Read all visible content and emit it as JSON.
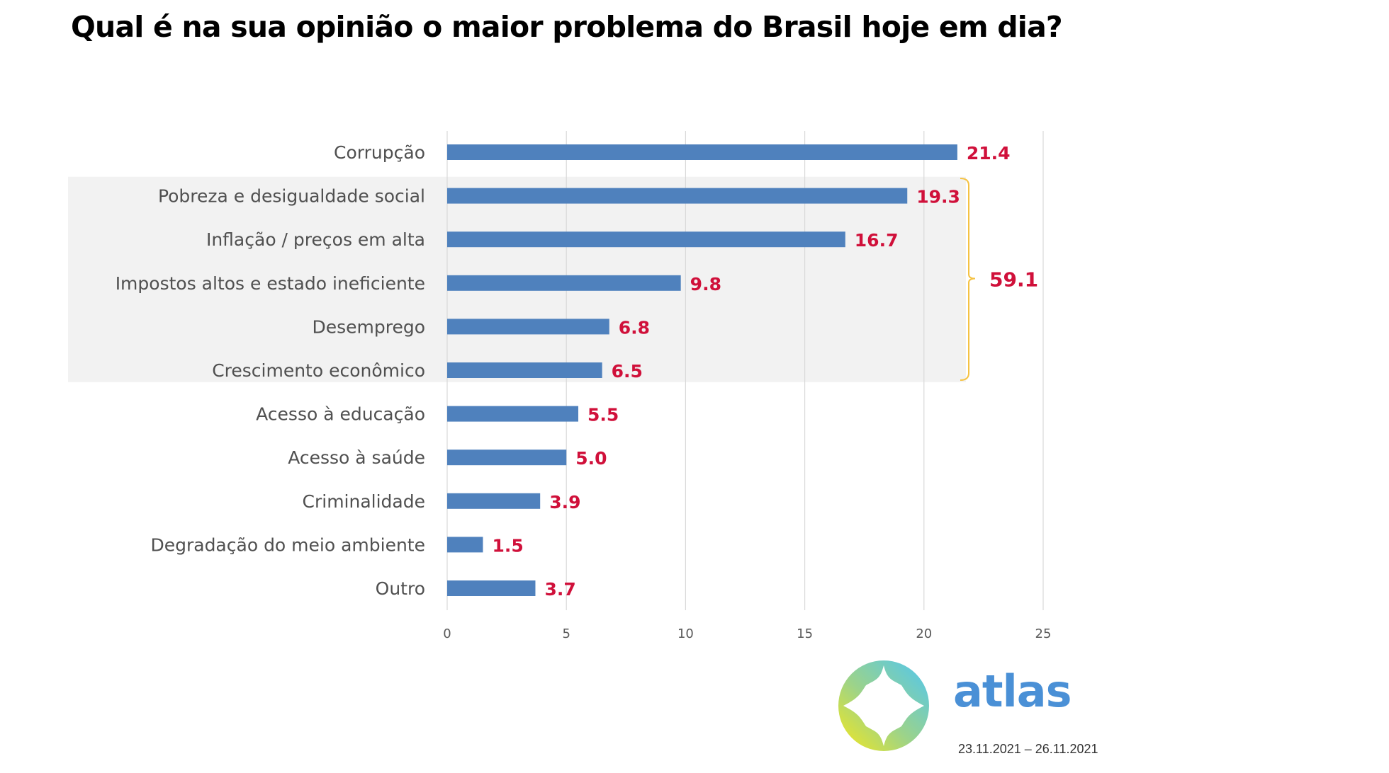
{
  "chart_data": {
    "type": "bar",
    "orientation": "horizontal",
    "title": "Qual é na sua opinião o maior problema do Brasil hoje em dia?",
    "xlabel": "",
    "ylabel": "",
    "categories": [
      "Corrupção",
      "Pobreza e desigualdade social",
      "Inflação / preços em alta",
      "Impostos altos e estado ineficiente",
      "Desemprego",
      "Crescimento econômico",
      "Acesso à educação",
      "Acesso à saúde",
      "Criminalidade",
      "Degradação do meio ambiente",
      "Outro"
    ],
    "values": [
      21.4,
      19.3,
      16.7,
      9.8,
      6.8,
      6.5,
      5.5,
      5.0,
      3.9,
      1.5,
      3.7
    ],
    "value_labels": [
      "21.4",
      "19.3",
      "16.7",
      "9.8",
      "6.8",
      "6.5",
      "5.5",
      "5.0",
      "3.9",
      "1.5",
      "3.7"
    ],
    "xlim": [
      0,
      25
    ],
    "x_ticks": [
      0,
      5,
      10,
      15,
      20,
      25
    ],
    "x_tick_labels": [
      "0",
      "5",
      "10",
      "15",
      "20",
      "25"
    ],
    "grid": true,
    "legend": "none",
    "highlight_group": {
      "categories": [
        "Pobreza e desigualdade social",
        "Inflação / preços em alta",
        "Impostos altos e estado ineficiente",
        "Desemprego",
        "Crescimento econômico"
      ],
      "sum_label": "59.1"
    },
    "colors": {
      "bar": "#4F81BD",
      "value_label": "#D0103A",
      "highlight_band": "#F2F2F2",
      "brace": "#F5C242",
      "gridline": "#D9D9D9"
    }
  },
  "branding": {
    "logo_text": "atlas",
    "logo_icon": "compass-star-icon",
    "date_range": "23.11.2021 – 26.11.2021"
  }
}
